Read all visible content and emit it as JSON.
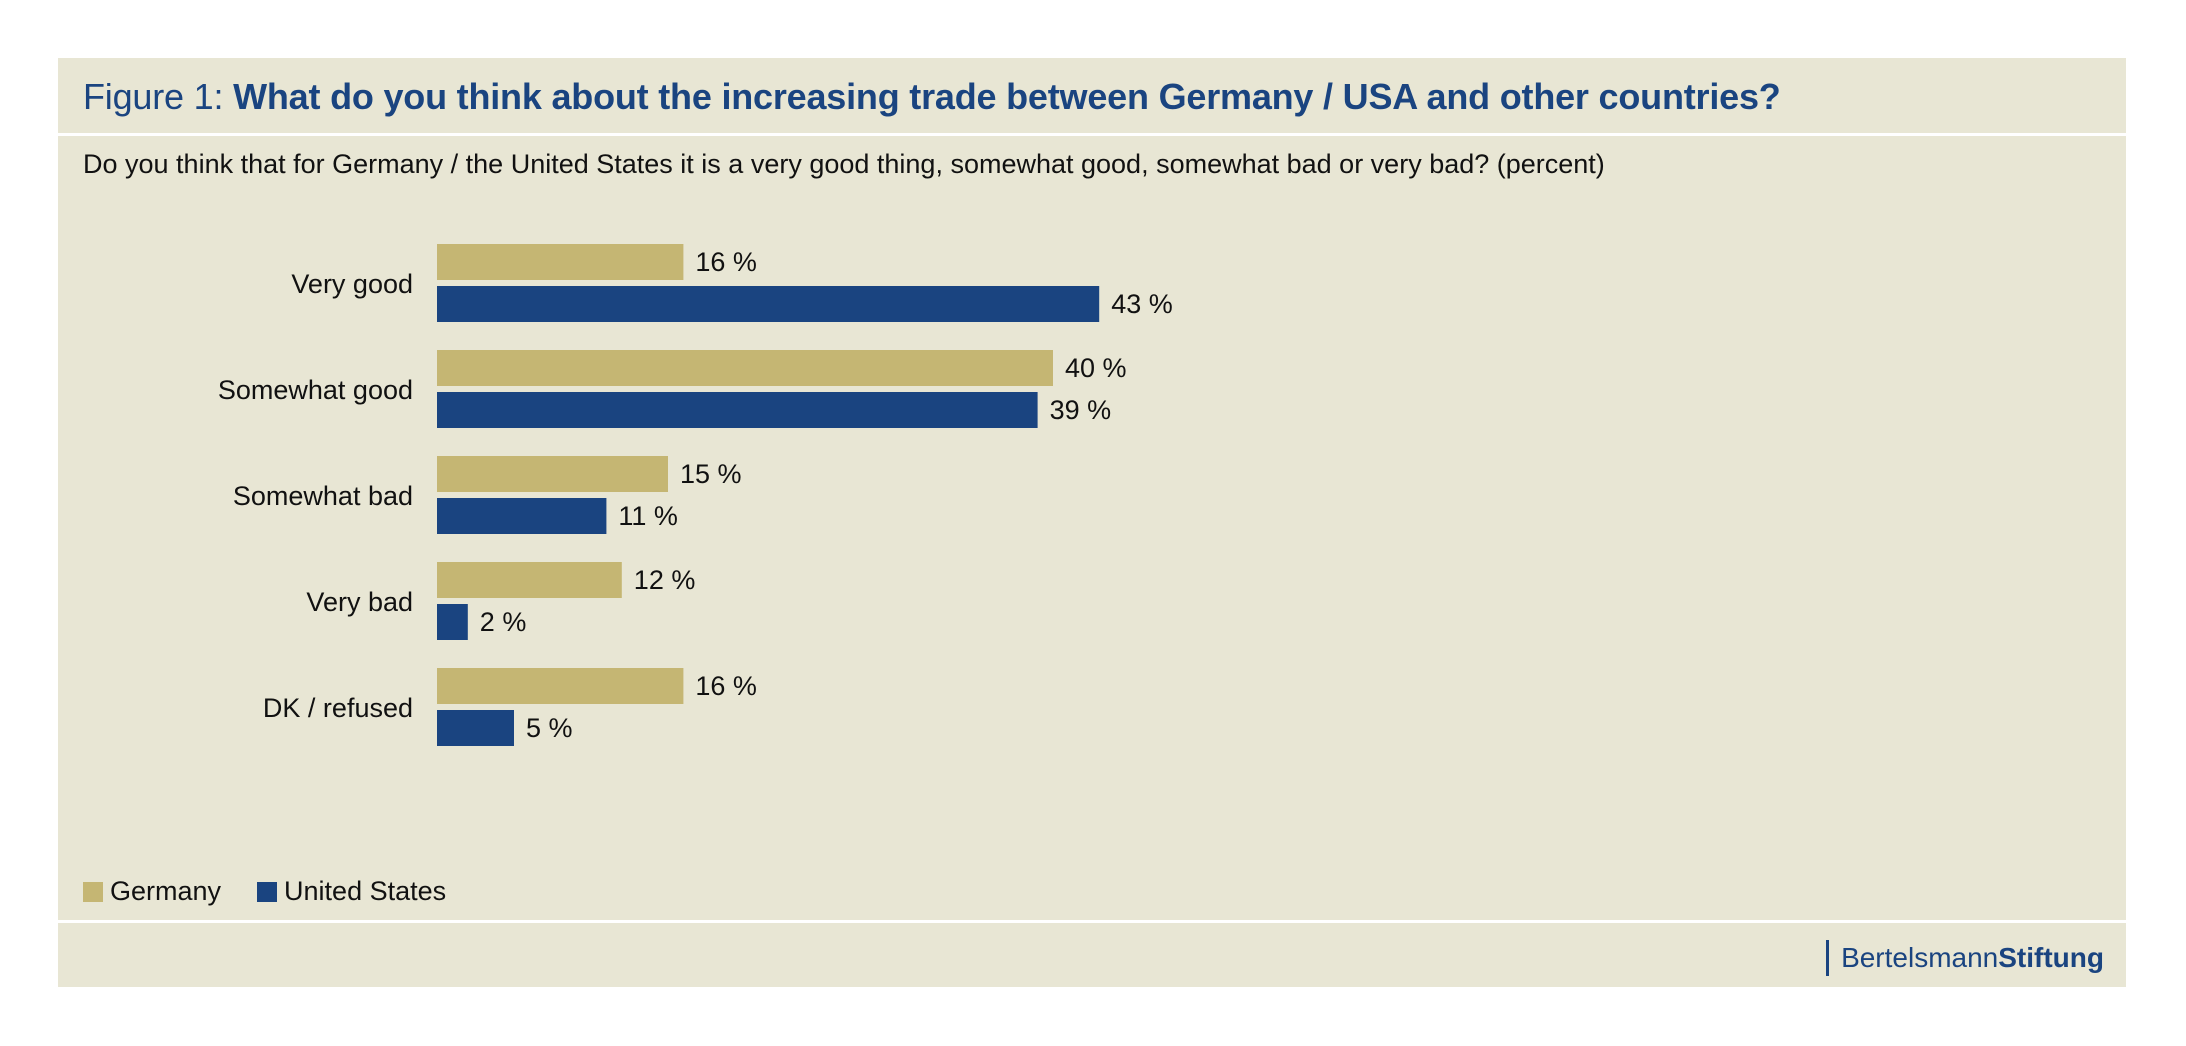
{
  "header": {
    "figure_label": "Figure 1:",
    "title": "What do you think about the increasing trade between Germany / USA and other countries?",
    "subtitle": "Do you think that for Germany / the United States  it is a very good thing, somewhat good, somewhat bad or very bad? (percent)"
  },
  "legend": {
    "items": [
      {
        "label": "Germany"
      },
      {
        "label": "United States"
      }
    ]
  },
  "brand": {
    "name_regular": "Bertelsmann",
    "name_bold": "Stiftung"
  },
  "colors": {
    "germany": "#c5b673",
    "united_states": "#1a4480",
    "panel_background": "#e8e6d4",
    "title": "#1a4480"
  },
  "chart_data": {
    "type": "bar",
    "orientation": "horizontal",
    "categories": [
      "Very good",
      "Somewhat good",
      "Somewhat bad",
      "Very bad",
      "DK / refused"
    ],
    "series": [
      {
        "name": "Germany",
        "values": [
          16,
          40,
          15,
          12,
          16
        ],
        "labels": [
          "16 %",
          "40 %",
          "15 %",
          "12 %",
          "16 %"
        ]
      },
      {
        "name": "United States",
        "values": [
          43,
          39,
          11,
          2,
          5
        ],
        "labels": [
          "43 %",
          "39 %",
          "11 %",
          "2 %",
          "5 %"
        ]
      }
    ],
    "unit": "%",
    "xlim": [
      0,
      100
    ],
    "grid": false,
    "legend_position": "bottom-left"
  }
}
